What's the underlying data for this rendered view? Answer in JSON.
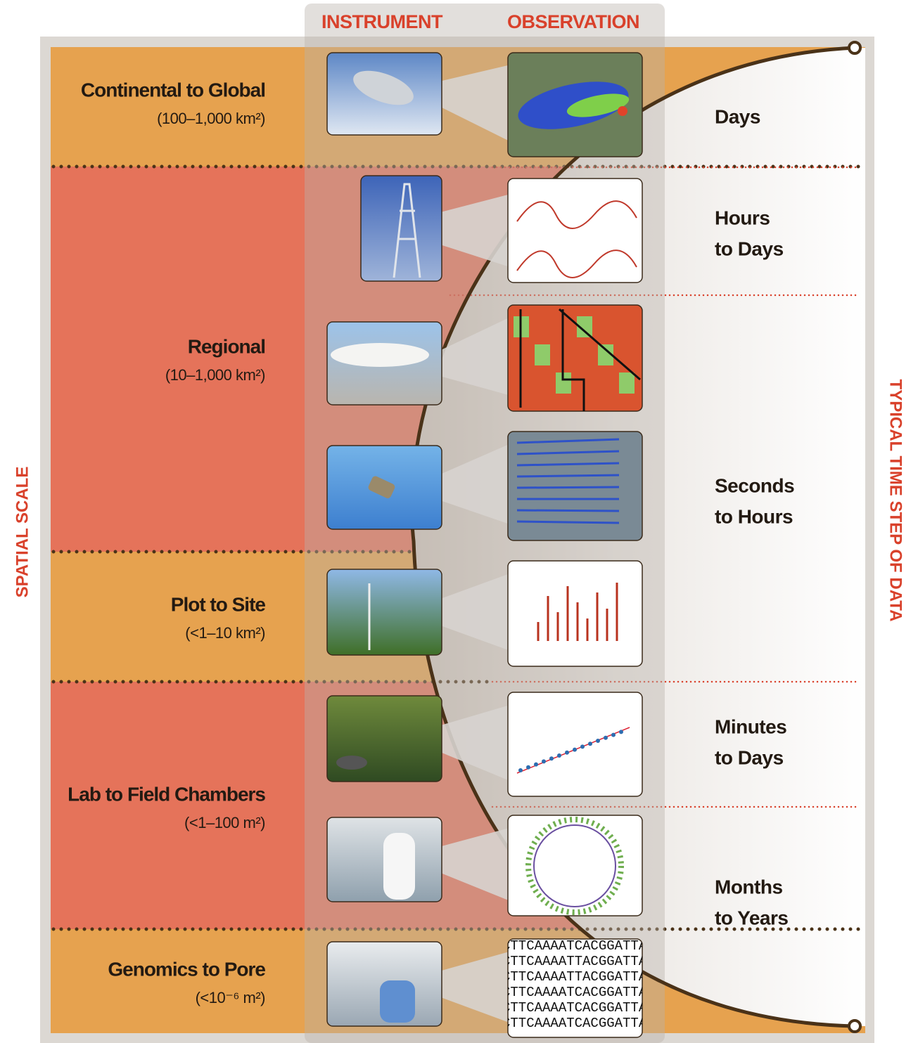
{
  "headers": {
    "instrument": "INSTRUMENT",
    "observation": "OBSERVATION"
  },
  "axes": {
    "spatial": "SPATIAL SCALE",
    "temporal": "TYPICAL TIME STEP OF DATA"
  },
  "spatial_scales": [
    {
      "label": "Continental to Global",
      "range": "(100–1,000 km²)"
    },
    {
      "label": "Regional",
      "range": "(10–1,000 km²)"
    },
    {
      "label": "Plot to Site",
      "range": "(<1–10 km²)"
    },
    {
      "label": "Lab to Field Chambers",
      "range": "(<1–100 m²)"
    },
    {
      "label": "Genomics to Pore",
      "range": "(<10⁻⁶ m²)"
    }
  ],
  "time_steps": [
    {
      "lines": [
        "Days"
      ]
    },
    {
      "lines": [
        "Hours",
        "to Days"
      ]
    },
    {
      "lines": [
        "Seconds",
        "to Hours"
      ]
    },
    {
      "lines": [
        "Minutes",
        "to Days"
      ]
    },
    {
      "lines": [
        "Months",
        "to Years"
      ]
    }
  ],
  "dna_sequence": [
    "CTTCAAAATCACGGATTAC",
    "CTTCAAAATTACGGATTAC",
    "CTTCAAAATTACGGATTAC",
    "CTTCAAAATCACGGATTAC",
    "CTTCAAAATCACGGATTAC",
    "CTTCAAAATCACGGATTAC"
  ]
}
